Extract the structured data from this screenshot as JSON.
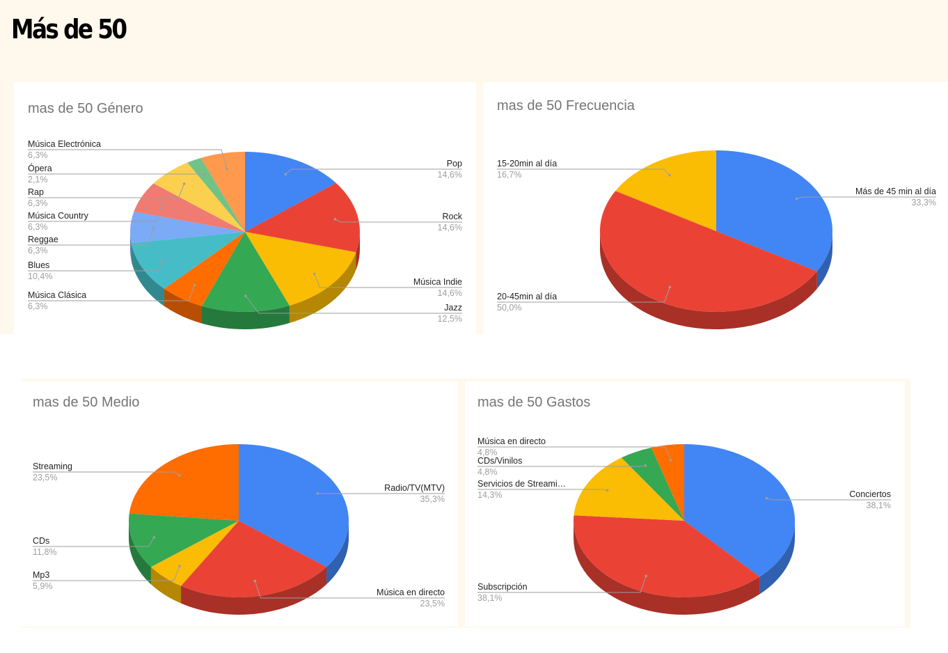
{
  "page": {
    "title": "Más de 50"
  },
  "chart_data": [
    {
      "type": "pie",
      "title": "mas de 50 Género",
      "slices": [
        {
          "label": "Pop",
          "value": 14.6,
          "value_label": "14,6%",
          "color": "#4285f4"
        },
        {
          "label": "Rock",
          "value": 14.6,
          "value_label": "14,6%",
          "color": "#ea4335"
        },
        {
          "label": "Música Indie",
          "value": 14.6,
          "value_label": "14,6%",
          "color": "#fbbc04"
        },
        {
          "label": "Jazz",
          "value": 12.5,
          "value_label": "12,5%",
          "color": "#34a853"
        },
        {
          "label": "Música Clásica",
          "value": 6.3,
          "value_label": "6,3%",
          "color": "#ff6d01"
        },
        {
          "label": "Blues",
          "value": 10.4,
          "value_label": "10,4%",
          "color": "#46bdc6"
        },
        {
          "label": "Reggae",
          "value": 6.3,
          "value_label": "6,3%",
          "color": "#7baaf7"
        },
        {
          "label": "Música Country",
          "value": 6.3,
          "value_label": "6,3%",
          "color": "#f07b72"
        },
        {
          "label": "Rap",
          "value": 6.3,
          "value_label": "6,3%",
          "color": "#fcd04f"
        },
        {
          "label": "Ópera",
          "value": 2.1,
          "value_label": "2,1%",
          "color": "#71c287"
        },
        {
          "label": "Música Electrónica",
          "value": 6.3,
          "value_label": "6,3%",
          "color": "#ff994d"
        }
      ]
    },
    {
      "type": "pie",
      "title": "mas de 50 Frecuencia",
      "slices": [
        {
          "label": "Más de 45 min al día",
          "value": 33.3,
          "value_label": "33,3%",
          "color": "#4285f4"
        },
        {
          "label": "20-45min al día",
          "value": 50.0,
          "value_label": "50,0%",
          "color": "#ea4335"
        },
        {
          "label": "15-20min al día",
          "value": 16.7,
          "value_label": "16,7%",
          "color": "#fbbc04"
        }
      ]
    },
    {
      "type": "pie",
      "title": "mas de 50 Medio",
      "slices": [
        {
          "label": "Radio/TV(MTV)",
          "value": 35.3,
          "value_label": "35,3%",
          "color": "#4285f4"
        },
        {
          "label": "Música en directo",
          "value": 23.5,
          "value_label": "23,5%",
          "color": "#ea4335"
        },
        {
          "label": "Mp3",
          "value": 5.9,
          "value_label": "5,9%",
          "color": "#fbbc04"
        },
        {
          "label": "CDs",
          "value": 11.8,
          "value_label": "11,8%",
          "color": "#34a853"
        },
        {
          "label": "Streaming",
          "value": 23.5,
          "value_label": "23,5%",
          "color": "#ff6d01"
        }
      ]
    },
    {
      "type": "pie",
      "title": "mas de 50 Gastos",
      "slices": [
        {
          "label": "Conciertos",
          "value": 38.1,
          "value_label": "38,1%",
          "color": "#4285f4"
        },
        {
          "label": "Subscripción",
          "value": 38.1,
          "value_label": "38,1%",
          "color": "#ea4335"
        },
        {
          "label": "Servicios de Streami…",
          "value": 14.3,
          "value_label": "14,3%",
          "color": "#fbbc04"
        },
        {
          "label": "CDs/Vinilos",
          "value": 4.8,
          "value_label": "4,8%",
          "color": "#34a853"
        },
        {
          "label": "Música en directo",
          "value": 4.8,
          "value_label": "4,8%",
          "color": "#ff6d01"
        }
      ]
    }
  ]
}
